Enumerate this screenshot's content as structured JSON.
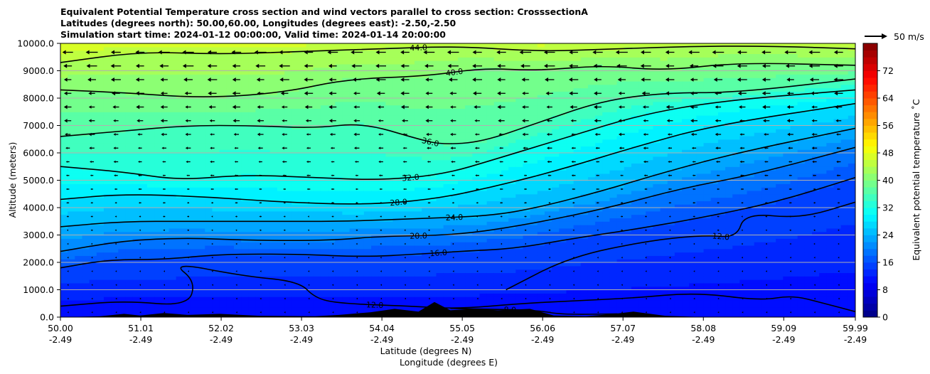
{
  "chart_data": {
    "type": "heatmap",
    "title_lines": [
      "Equivalent Potential Temperature cross section and wind vectors parallel to cross section: CrosssectionA",
      "Latitudes (degrees north): 50.00,60.00, Longitudes (degrees east): -2.50,-2.50",
      "Simulation start time: 2024-01-12 00:00:00, Valid time: 2024-01-14 20:00:00"
    ],
    "xlabel": "Latitude (degrees N)",
    "xlabel2": "Longitude (degrees E)",
    "ylabel": "Altitude (meters)",
    "xlim": [
      50.0,
      59.99
    ],
    "ylim": [
      0,
      10000
    ],
    "x_ticks": [
      {
        "value": 50.0,
        "lat": "50.00",
        "lon": "-2.49"
      },
      {
        "value": 51.01,
        "lat": "51.01",
        "lon": "-2.49"
      },
      {
        "value": 52.02,
        "lat": "52.02",
        "lon": "-2.49"
      },
      {
        "value": 53.03,
        "lat": "53.03",
        "lon": "-2.49"
      },
      {
        "value": 54.04,
        "lat": "54.04",
        "lon": "-2.49"
      },
      {
        "value": 55.05,
        "lat": "55.05",
        "lon": "-2.49"
      },
      {
        "value": 56.06,
        "lat": "56.06",
        "lon": "-2.49"
      },
      {
        "value": 57.07,
        "lat": "57.07",
        "lon": "-2.49"
      },
      {
        "value": 58.08,
        "lat": "58.08",
        "lon": "-2.49"
      },
      {
        "value": 59.09,
        "lat": "59.09",
        "lon": "-2.49"
      },
      {
        "value": 59.99,
        "lat": "59.99",
        "lon": "-2.49"
      }
    ],
    "y_ticks": [
      {
        "value": 0,
        "label": "0.0"
      },
      {
        "value": 1000,
        "label": "1000.0"
      },
      {
        "value": 2000,
        "label": "2000.0"
      },
      {
        "value": 3000,
        "label": "3000.0"
      },
      {
        "value": 4000,
        "label": "4000.0"
      },
      {
        "value": 5000,
        "label": "5000.0"
      },
      {
        "value": 6000,
        "label": "6000.0"
      },
      {
        "value": 7000,
        "label": "7000.0"
      },
      {
        "value": 8000,
        "label": "8000.0"
      },
      {
        "value": 9000,
        "label": "9000.0"
      },
      {
        "value": 10000,
        "label": "10000.0"
      }
    ],
    "grid": "horizontal",
    "colorbar": {
      "label": "Equivalent potential temperature ˚C",
      "range": [
        0,
        80
      ],
      "step": 2,
      "ticks": [
        {
          "value": 0,
          "label": "0"
        },
        {
          "value": 8,
          "label": "8"
        },
        {
          "value": 16,
          "label": "16"
        },
        {
          "value": 24,
          "label": "24"
        },
        {
          "value": 32,
          "label": "32"
        },
        {
          "value": 40,
          "label": "40"
        },
        {
          "value": 48,
          "label": "48"
        },
        {
          "value": 56,
          "label": "56"
        },
        {
          "value": 64,
          "label": "64"
        },
        {
          "value": 72,
          "label": "72"
        }
      ],
      "colormap": "jet"
    },
    "quiver_key": {
      "label": "50 m/s",
      "speed": 50
    },
    "wind_vectors": {
      "note_direction": "toward lower latitude (southward along section)",
      "speed_profile": [
        {
          "altitude": 0,
          "speed": 2
        },
        {
          "altitude": 2000,
          "speed": 3
        },
        {
          "altitude": 4000,
          "speed": 6
        },
        {
          "altitude": 6000,
          "speed": 12
        },
        {
          "altitude": 8000,
          "speed": 20
        },
        {
          "altitude": 10000,
          "speed": 30
        }
      ]
    },
    "contours": [
      {
        "level": 8,
        "label": "8.0",
        "points": [
          [
            54.9,
            320
          ],
          [
            55.3,
            290
          ],
          [
            56.0,
            250
          ],
          [
            56.3,
            90
          ],
          [
            57.0,
            120
          ]
        ]
      },
      {
        "level": 12,
        "label": "12.0",
        "points": [
          [
            50.0,
            400
          ],
          [
            50.8,
            600
          ],
          [
            51.6,
            400
          ],
          [
            51.7,
            1300
          ],
          [
            51.4,
            2000
          ],
          [
            52.3,
            1500
          ],
          [
            53.0,
            1300
          ],
          [
            53.2,
            700
          ],
          [
            53.5,
            500
          ],
          [
            54.4,
            400
          ],
          [
            55.0,
            300
          ],
          [
            55.8,
            500
          ],
          [
            56.5,
            600
          ],
          [
            57.2,
            700
          ],
          [
            58.0,
            900
          ],
          [
            58.8,
            600
          ],
          [
            59.2,
            800
          ],
          [
            59.6,
            500
          ],
          [
            59.99,
            200
          ]
        ]
      },
      {
        "level": 12,
        "label": "12.0",
        "points": [
          [
            55.6,
            1000
          ],
          [
            56.4,
            2200
          ],
          [
            57.4,
            2800
          ],
          [
            58.1,
            3000
          ],
          [
            58.5,
            2900
          ],
          [
            58.6,
            3800
          ],
          [
            59.3,
            3600
          ],
          [
            59.99,
            4200
          ]
        ]
      },
      {
        "level": 16,
        "label": "16.0",
        "points": [
          [
            50.0,
            1800
          ],
          [
            50.6,
            2100
          ],
          [
            51.3,
            2100
          ],
          [
            52.0,
            2300
          ],
          [
            53.0,
            2300
          ],
          [
            53.8,
            2200
          ],
          [
            54.5,
            2300
          ],
          [
            55.0,
            2400
          ],
          [
            55.7,
            2500
          ],
          [
            56.5,
            2900
          ],
          [
            57.2,
            3200
          ],
          [
            58.0,
            3600
          ],
          [
            59.0,
            4200
          ],
          [
            59.99,
            5100
          ]
        ]
      },
      {
        "level": 20,
        "label": "20.0",
        "points": [
          [
            50.0,
            2400
          ],
          [
            50.8,
            2800
          ],
          [
            51.6,
            2900
          ],
          [
            52.4,
            2800
          ],
          [
            53.4,
            2800
          ],
          [
            54.0,
            2950
          ],
          [
            55.0,
            3000
          ],
          [
            55.9,
            3400
          ],
          [
            56.9,
            4000
          ],
          [
            57.8,
            4700
          ],
          [
            58.7,
            5200
          ],
          [
            59.99,
            6200
          ]
        ]
      },
      {
        "level": 24,
        "label": "24.0",
        "points": [
          [
            50.0,
            3300
          ],
          [
            50.8,
            3500
          ],
          [
            51.6,
            3500
          ],
          [
            52.6,
            3500
          ],
          [
            53.6,
            3500
          ],
          [
            54.5,
            3600
          ],
          [
            55.4,
            3700
          ],
          [
            56.0,
            4000
          ],
          [
            56.8,
            4600
          ],
          [
            57.6,
            5300
          ],
          [
            58.5,
            6000
          ],
          [
            59.99,
            6900
          ]
        ]
      },
      {
        "level": 28,
        "label": "28.0",
        "points": [
          [
            50.0,
            4300
          ],
          [
            50.8,
            4500
          ],
          [
            51.8,
            4400
          ],
          [
            52.8,
            4200
          ],
          [
            53.8,
            4100
          ],
          [
            54.7,
            4300
          ],
          [
            55.5,
            4800
          ],
          [
            56.3,
            5400
          ],
          [
            57.2,
            6200
          ],
          [
            58.2,
            7000
          ],
          [
            59.99,
            7800
          ]
        ]
      },
      {
        "level": 32,
        "label": "32.0",
        "points": [
          [
            50.0,
            5500
          ],
          [
            50.8,
            5300
          ],
          [
            51.5,
            5000
          ],
          [
            52.3,
            5200
          ],
          [
            53.2,
            5100
          ],
          [
            54.0,
            5000
          ],
          [
            54.8,
            5200
          ],
          [
            55.5,
            5800
          ],
          [
            56.4,
            6600
          ],
          [
            57.3,
            7400
          ],
          [
            58.3,
            7900
          ],
          [
            59.99,
            8300
          ]
        ]
      },
      {
        "level": 36,
        "label": "36.0",
        "points": [
          [
            50.0,
            6600
          ],
          [
            50.8,
            6800
          ],
          [
            51.6,
            7000
          ],
          [
            52.4,
            7000
          ],
          [
            53.2,
            6900
          ],
          [
            53.8,
            7100
          ],
          [
            54.5,
            6500
          ],
          [
            54.8,
            6300
          ],
          [
            55.3,
            6400
          ],
          [
            56.0,
            7100
          ],
          [
            56.8,
            7900
          ],
          [
            57.6,
            8200
          ],
          [
            58.5,
            8200
          ],
          [
            59.99,
            8700
          ]
        ]
      },
      {
        "level": 40,
        "label": "40.0",
        "points": [
          [
            50.0,
            8300
          ],
          [
            50.8,
            8200
          ],
          [
            51.8,
            8000
          ],
          [
            52.8,
            8200
          ],
          [
            53.6,
            8700
          ],
          [
            54.6,
            8800
          ],
          [
            55.3,
            9100
          ],
          [
            56.0,
            9000
          ],
          [
            56.8,
            9200
          ],
          [
            57.6,
            9000
          ],
          [
            58.5,
            9300
          ],
          [
            59.99,
            9200
          ]
        ]
      },
      {
        "level": 44,
        "label": "44.0",
        "points": [
          [
            50.0,
            9300
          ],
          [
            51.0,
            9700
          ],
          [
            52.0,
            9600
          ],
          [
            53.0,
            9700
          ],
          [
            54.0,
            9800
          ],
          [
            55.0,
            9900
          ],
          [
            56.0,
            9700
          ],
          [
            57.0,
            9800
          ],
          [
            58.0,
            9900
          ],
          [
            59.0,
            9900
          ],
          [
            59.99,
            9800
          ]
        ]
      }
    ],
    "terrain": [
      [
        50.0,
        0
      ],
      [
        50.5,
        30
      ],
      [
        50.8,
        120
      ],
      [
        51.0,
        60
      ],
      [
        51.3,
        150
      ],
      [
        51.6,
        80
      ],
      [
        52.0,
        120
      ],
      [
        52.5,
        50
      ],
      [
        53.2,
        30
      ],
      [
        53.5,
        80
      ],
      [
        53.9,
        180
      ],
      [
        54.2,
        300
      ],
      [
        54.5,
        200
      ],
      [
        54.7,
        550
      ],
      [
        54.9,
        250
      ],
      [
        55.2,
        300
      ],
      [
        55.5,
        250
      ],
      [
        55.9,
        300
      ],
      [
        56.2,
        60
      ],
      [
        56.6,
        30
      ],
      [
        56.9,
        100
      ],
      [
        57.2,
        200
      ],
      [
        57.6,
        50
      ],
      [
        58.0,
        10
      ],
      [
        59.99,
        0
      ]
    ]
  }
}
